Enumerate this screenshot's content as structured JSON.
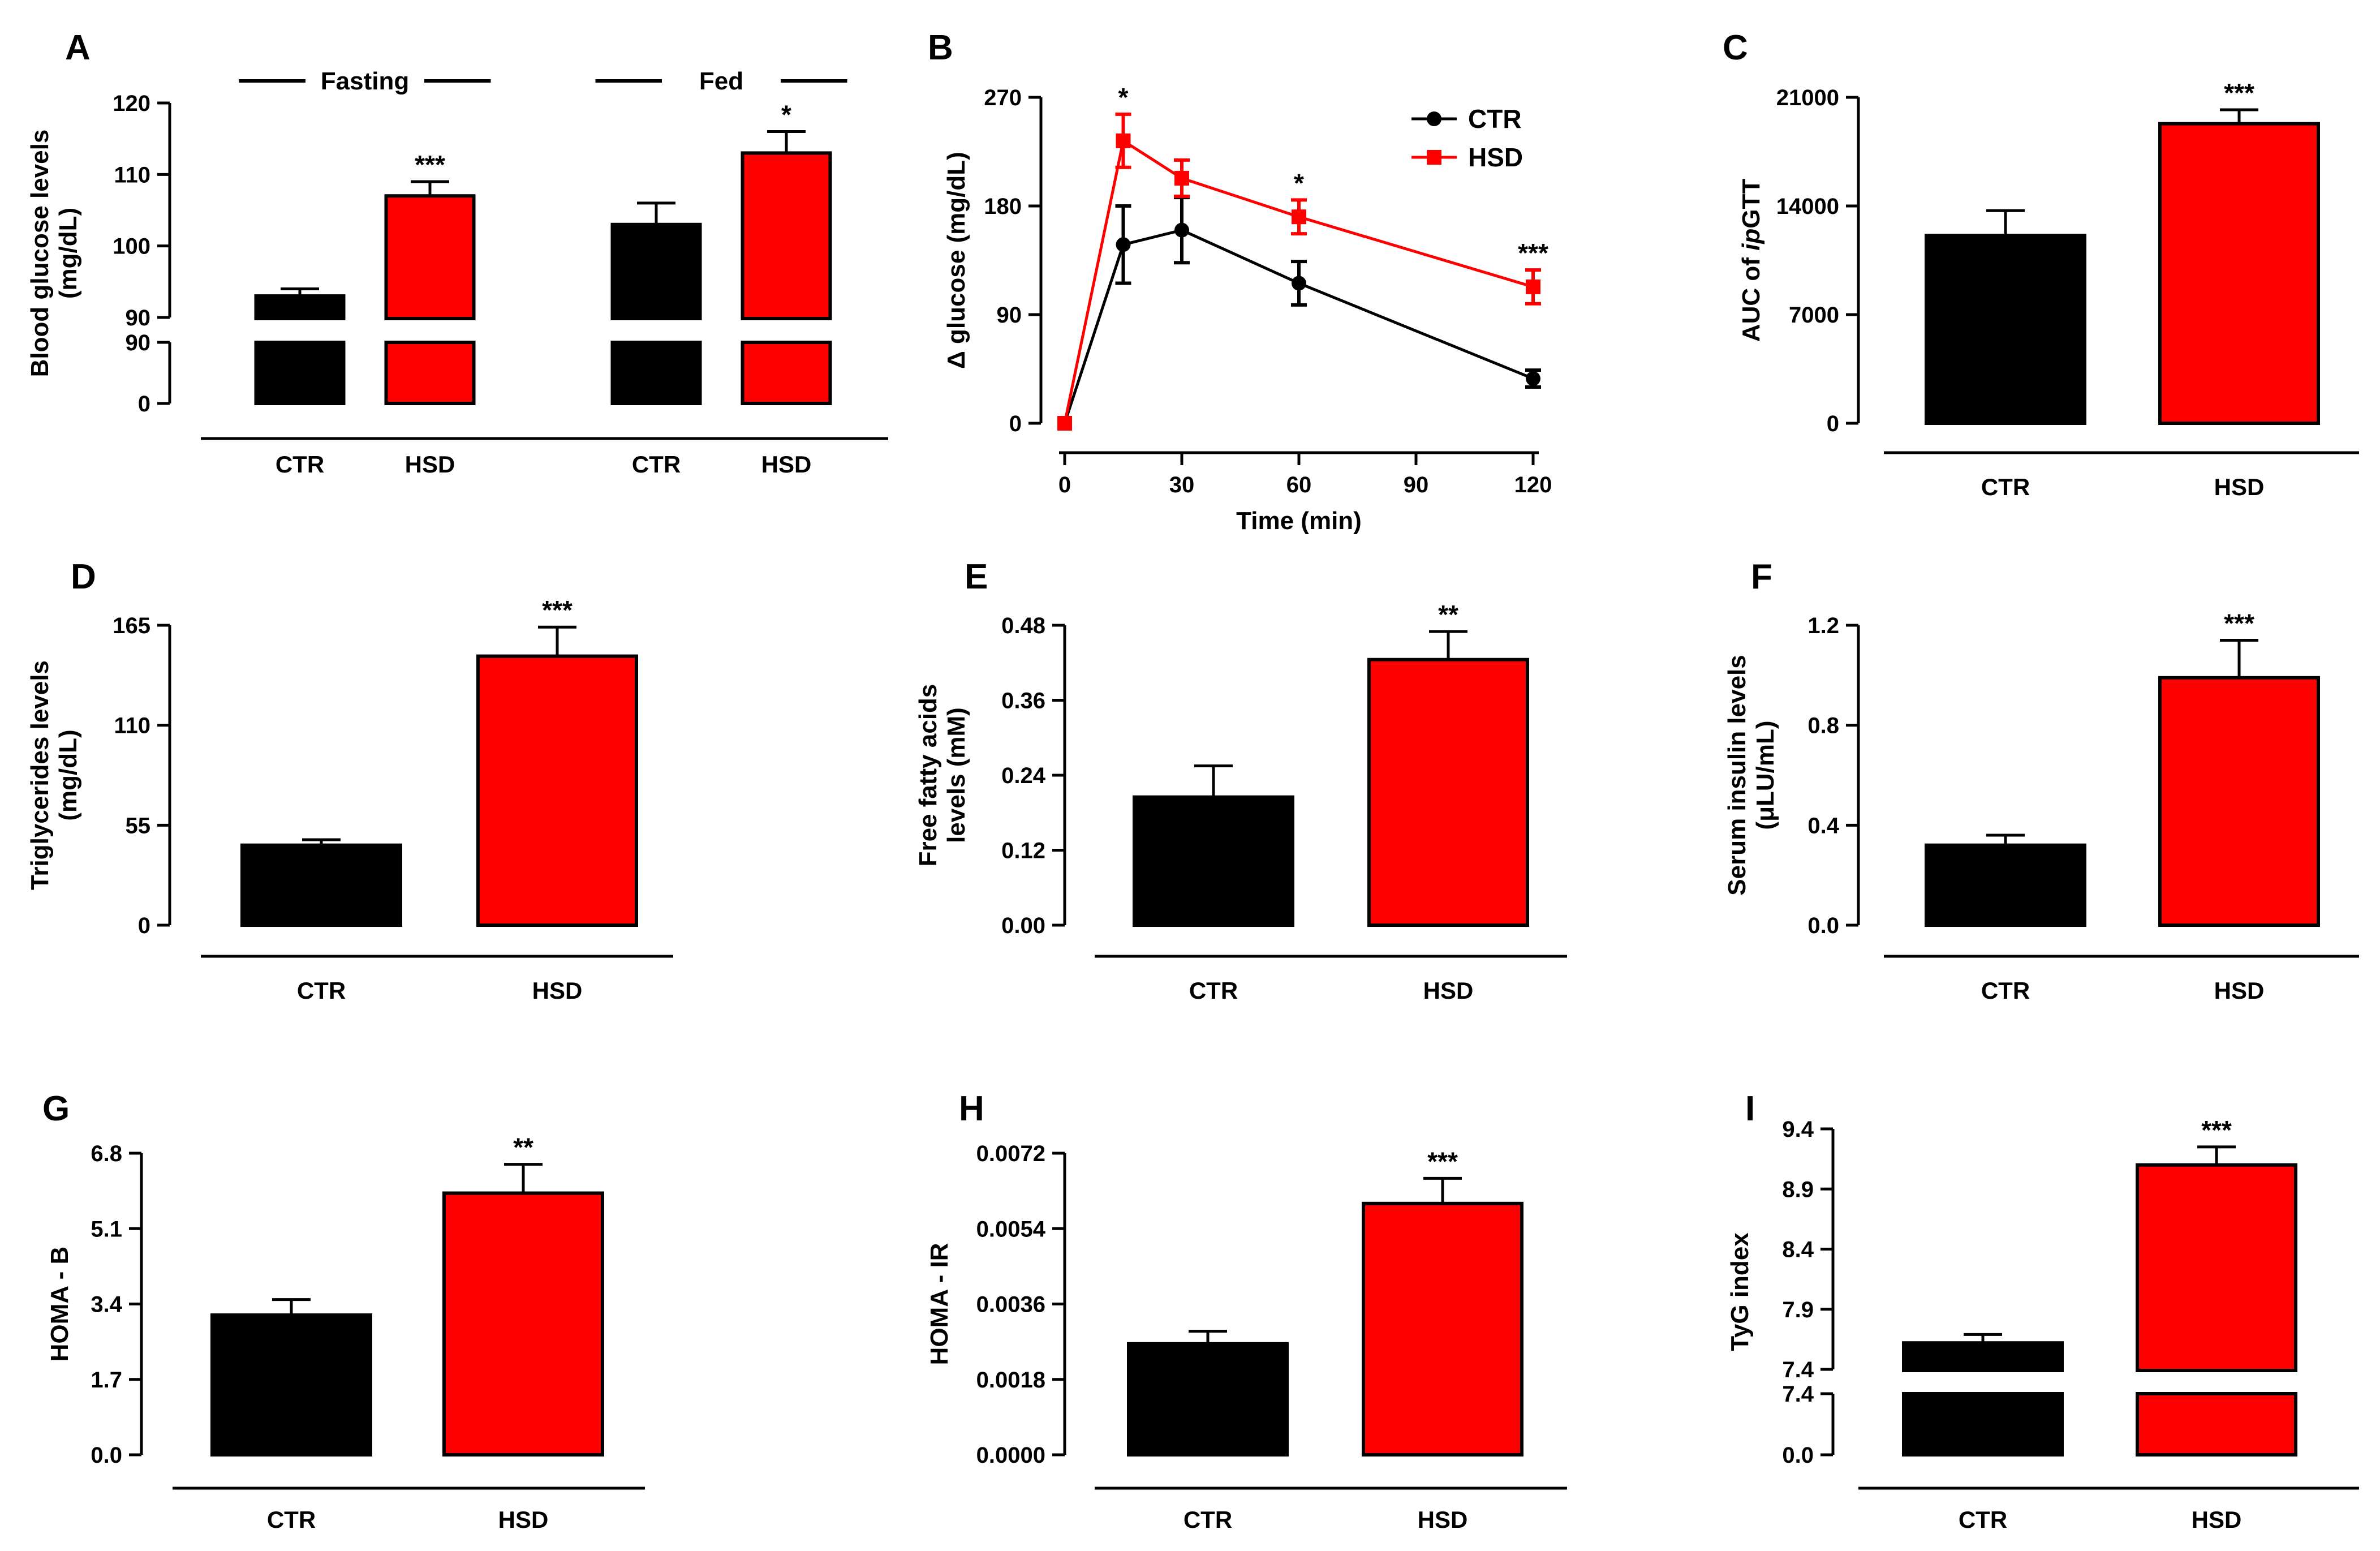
{
  "colors": {
    "ctr": "#000000",
    "hsd": "#ff0000"
  },
  "chart_data": [
    {
      "panel": "A",
      "type": "bar",
      "axis_break": true,
      "ylabel_lines": [
        "Blood glucose levels",
        "(mg/dL)"
      ],
      "lower_ticks": [
        "0",
        "90"
      ],
      "upper_ticks": [
        "90",
        "100",
        "110",
        "120"
      ],
      "groups": [
        {
          "label": "Fasting",
          "categories": [
            "CTR",
            "HSD"
          ],
          "values": [
            93,
            107
          ],
          "errors": [
            1,
            2
          ],
          "stars": [
            "",
            "***"
          ]
        },
        {
          "label": "Fed",
          "categories": [
            "CTR",
            "HSD"
          ],
          "values": [
            103,
            113
          ],
          "errors": [
            3,
            3
          ],
          "stars": [
            "",
            "*"
          ]
        }
      ]
    },
    {
      "panel": "B",
      "type": "line",
      "ylabel": "Δ glucose (mg/dL)",
      "xlabel": "Time (min)",
      "x_ticks": [
        "0",
        "30",
        "60",
        "90",
        "120"
      ],
      "y_ticks": [
        "0",
        "90",
        "180",
        "270"
      ],
      "xlim": [
        0,
        120
      ],
      "ylim": [
        0,
        270
      ],
      "series": [
        {
          "name": "CTR",
          "x": [
            0,
            15,
            30,
            60,
            120
          ],
          "values": [
            0,
            148,
            160,
            116,
            37
          ],
          "errors": [
            0,
            32,
            27,
            18,
            7
          ]
        },
        {
          "name": "HSD",
          "x": [
            0,
            15,
            30,
            60,
            120
          ],
          "values": [
            0,
            234,
            203,
            171,
            113
          ],
          "errors": [
            0,
            22,
            15,
            14,
            14
          ]
        }
      ],
      "stars": [
        {
          "x": 15,
          "text": "*"
        },
        {
          "x": 60,
          "text": "*"
        },
        {
          "x": 120,
          "text": "***"
        }
      ]
    },
    {
      "panel": "C",
      "type": "bar",
      "ylabel_parts": [
        "AUC of ",
        "ip",
        "GTT"
      ],
      "y_ticks": [
        "0",
        "7000",
        "14000",
        "21000"
      ],
      "ylim": [
        0,
        21000
      ],
      "categories": [
        "CTR",
        "HSD"
      ],
      "values": [
        12100,
        19300
      ],
      "errors": [
        1600,
        900
      ],
      "stars": [
        "",
        "***"
      ]
    },
    {
      "panel": "D",
      "type": "bar",
      "ylabel_lines": [
        "Triglycerides levels",
        "(mg/dL)"
      ],
      "y_ticks": [
        "0",
        "55",
        "110",
        "165"
      ],
      "ylim": [
        0,
        165
      ],
      "categories": [
        "CTR",
        "HSD"
      ],
      "values": [
        44,
        148
      ],
      "errors": [
        3,
        16
      ],
      "stars": [
        "",
        "***"
      ]
    },
    {
      "panel": "E",
      "type": "bar",
      "ylabel_lines": [
        "Free fatty acids",
        "levels (mM)"
      ],
      "y_ticks": [
        "0.00",
        "0.12",
        "0.24",
        "0.36",
        "0.48"
      ],
      "ylim": [
        0,
        0.48
      ],
      "categories": [
        "CTR",
        "HSD"
      ],
      "values": [
        0.205,
        0.425
      ],
      "errors": [
        0.05,
        0.045
      ],
      "stars": [
        "",
        "**"
      ]
    },
    {
      "panel": "F",
      "type": "bar",
      "ylabel_lines": [
        "Serum insulin levels",
        "(μLU/mL)"
      ],
      "y_ticks": [
        "0.0",
        "0.4",
        "0.8",
        "1.2"
      ],
      "ylim": [
        0,
        1.2
      ],
      "categories": [
        "CTR",
        "HSD"
      ],
      "values": [
        0.32,
        0.99
      ],
      "errors": [
        0.04,
        0.15
      ],
      "stars": [
        "",
        "***"
      ]
    },
    {
      "panel": "G",
      "type": "bar",
      "ylabel_lines": [
        "HOMA - B"
      ],
      "y_ticks": [
        "0.0",
        "1.7",
        "3.4",
        "5.1",
        "6.8"
      ],
      "ylim": [
        0,
        6.8
      ],
      "categories": [
        "CTR",
        "HSD"
      ],
      "values": [
        3.15,
        5.9
      ],
      "errors": [
        0.35,
        0.65
      ],
      "stars": [
        "",
        "**"
      ]
    },
    {
      "panel": "H",
      "type": "bar",
      "ylabel_lines": [
        "HOMA - IR"
      ],
      "y_ticks": [
        "0.0000",
        "0.0018",
        "0.0036",
        "0.0054",
        "0.0072"
      ],
      "ylim": [
        0,
        0.0072
      ],
      "categories": [
        "CTR",
        "HSD"
      ],
      "values": [
        0.00265,
        0.006
      ],
      "errors": [
        0.0003,
        0.0006
      ],
      "stars": [
        "",
        "***"
      ]
    },
    {
      "panel": "I",
      "type": "bar",
      "axis_break": true,
      "ylabel_lines": [
        "TyG index"
      ],
      "lower_ticks": [
        "0.0",
        "7.4"
      ],
      "upper_ticks": [
        "7.4",
        "7.9",
        "8.4",
        "8.9",
        "9.4"
      ],
      "categories": [
        "CTR",
        "HSD"
      ],
      "values": [
        7.62,
        9.1
      ],
      "errors": [
        0.07,
        0.15
      ],
      "stars": [
        "",
        "***"
      ]
    }
  ]
}
